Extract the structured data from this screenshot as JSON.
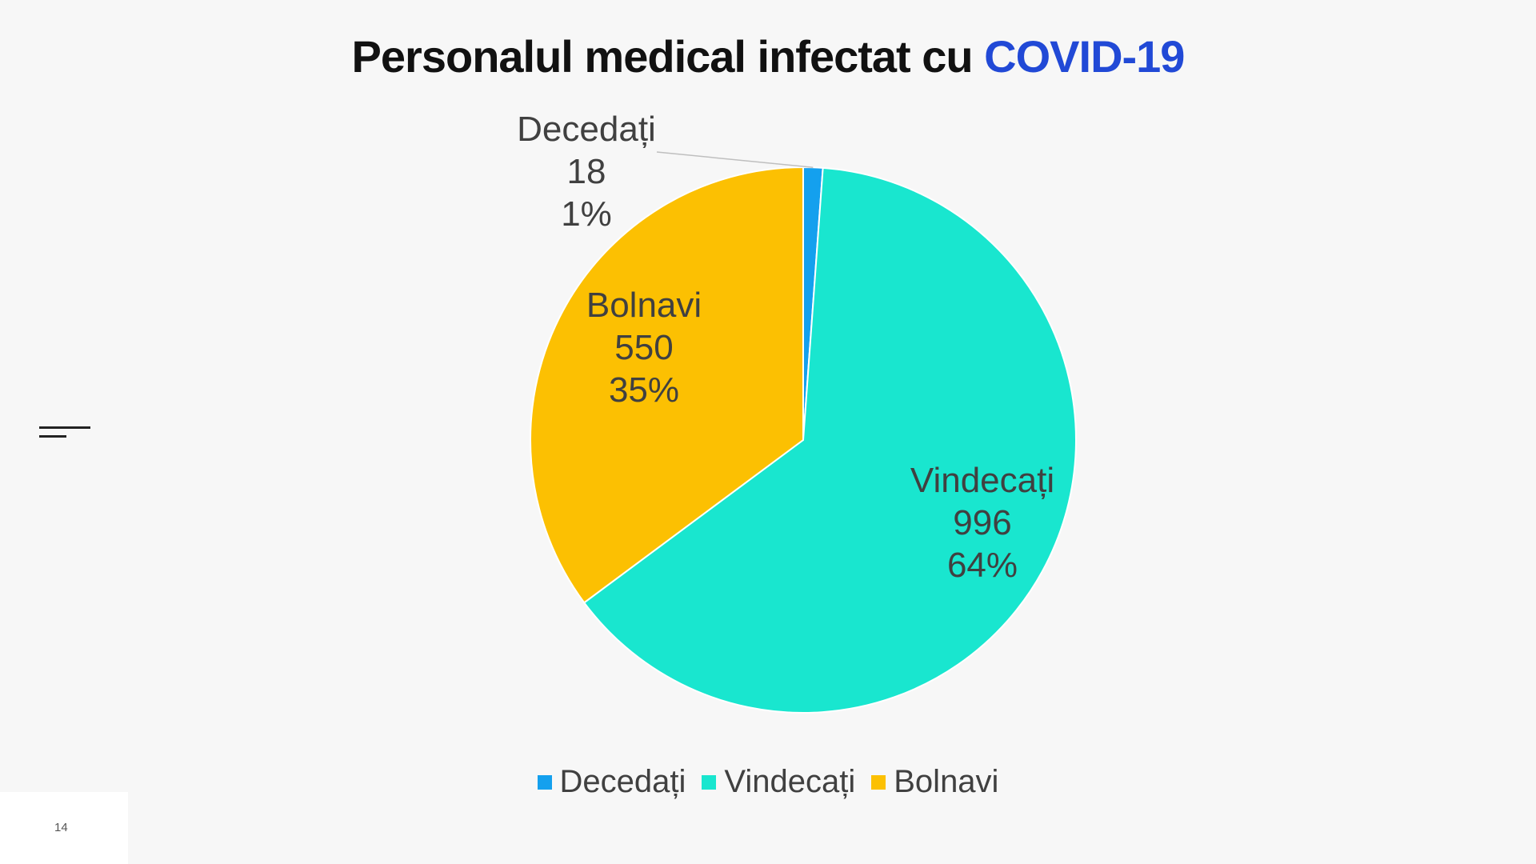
{
  "slide": {
    "title_main": "Personalul medical infectat cu ",
    "title_accent": "COVID-19",
    "page_number": "14"
  },
  "colors": {
    "title_accent": "#2149d6",
    "background": "#f7f7f7"
  },
  "chart_data": {
    "type": "pie",
    "title": "",
    "legend_position": "bottom",
    "slices": [
      {
        "name": "Decedați",
        "value": 18,
        "percent_label": "1%",
        "color": "#14a0ee"
      },
      {
        "name": "Vindecați",
        "value": 996,
        "percent_label": "64%",
        "color": "#19e6cf"
      },
      {
        "name": "Bolnavi",
        "value": 550,
        "percent_label": "35%",
        "color": "#fcc002"
      }
    ]
  }
}
